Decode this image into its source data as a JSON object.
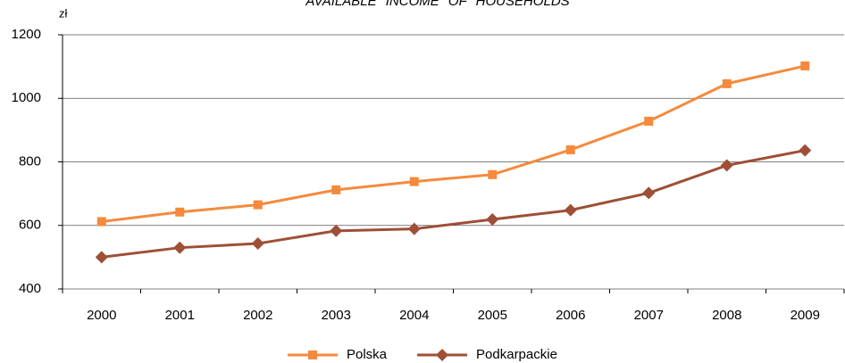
{
  "chart_data": {
    "type": "line",
    "title": "AVAILABLE INCOME OF HOUSEHOLDS",
    "y_label": "zł",
    "categories": [
      "2000",
      "2001",
      "2002",
      "2003",
      "2004",
      "2005",
      "2006",
      "2007",
      "2008",
      "2009"
    ],
    "series": [
      {
        "name": "Polska",
        "color": "#f58a3d",
        "marker": "square",
        "values": [
          612,
          642,
          665,
          712,
          738,
          760,
          838,
          928,
          1046,
          1102
        ]
      },
      {
        "name": "Podkarpackie",
        "color": "#9e4f36",
        "marker": "diamond",
        "values": [
          500,
          530,
          543,
          583,
          589,
          619,
          648,
          702,
          789,
          836
        ]
      }
    ],
    "ylim": [
      400,
      1200
    ],
    "yticks": [
      400,
      600,
      800,
      1000,
      1200
    ],
    "grid": true,
    "legend": "bottom"
  }
}
